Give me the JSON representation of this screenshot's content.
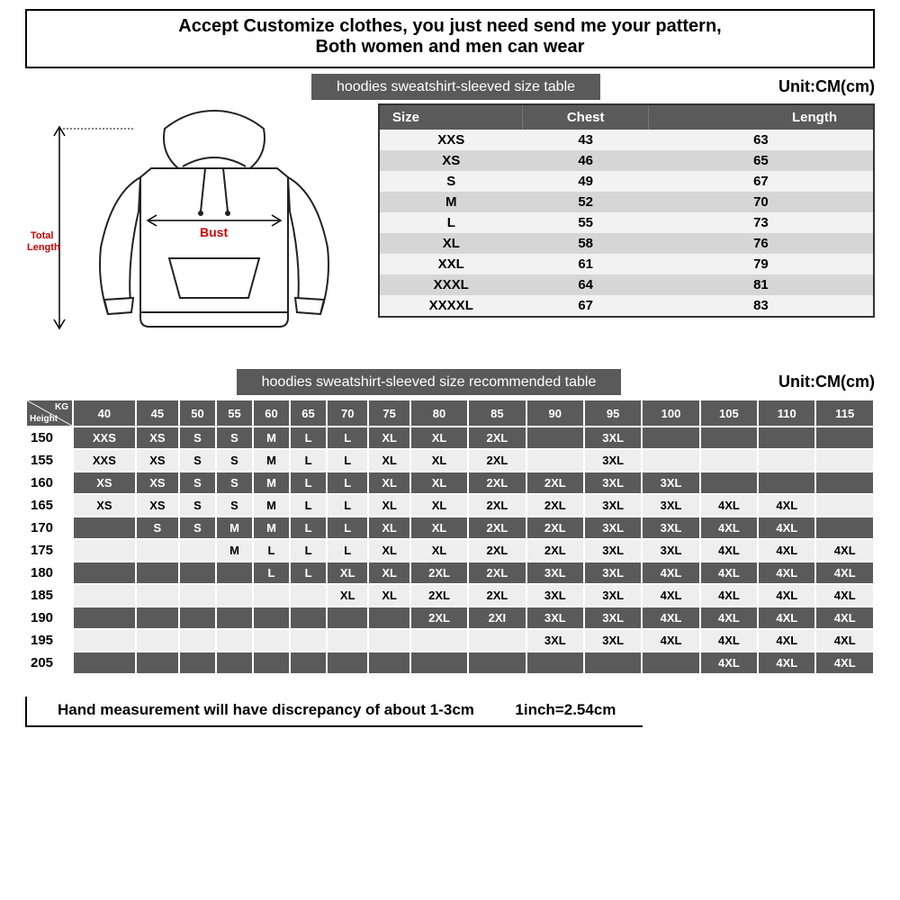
{
  "header": {
    "line1": "Accept Customize clothes, you just need send me your pattern,",
    "line2": "Both women and men can wear"
  },
  "section1": {
    "title": "hoodies sweatshirt-sleeved size  table",
    "unit": "Unit:CM(cm)",
    "title_bg": "#5a5a5a",
    "title_fg": "#ffffff"
  },
  "diagram": {
    "total_length_label": "Total\nLength",
    "bust_label": "Bust",
    "total_length_color": "#cc0000",
    "bust_color": "#cc0000",
    "stroke": "#222222"
  },
  "size_table": {
    "columns": [
      "Size",
      "Chest",
      "Length"
    ],
    "rows": [
      [
        "XXS",
        "43",
        "63"
      ],
      [
        "XS",
        "46",
        "65"
      ],
      [
        "S",
        "49",
        "67"
      ],
      [
        "M",
        "52",
        "70"
      ],
      [
        "L",
        "55",
        "73"
      ],
      [
        "XL",
        "58",
        "76"
      ],
      [
        "XXL",
        "61",
        "79"
      ],
      [
        "XXXL",
        "64",
        "81"
      ],
      [
        "XXXXL",
        "67",
        "83"
      ]
    ],
    "header_bg": "#5a5a5a",
    "header_fg": "#ffffff",
    "row_odd_bg": "#f2f2f2",
    "row_even_bg": "#d6d6d6"
  },
  "section2": {
    "title": "hoodies sweatshirt-sleeved size recommended table",
    "unit": "Unit:CM(cm)"
  },
  "rec_table": {
    "corner_top": "KG",
    "corner_bottom": "Height",
    "weights": [
      "40",
      "45",
      "50",
      "55",
      "60",
      "65",
      "70",
      "75",
      "80",
      "85",
      "90",
      "95",
      "100",
      "105",
      "110",
      "115"
    ],
    "heights": [
      "150",
      "155",
      "160",
      "165",
      "170",
      "175",
      "180",
      "185",
      "190",
      "195",
      "205"
    ],
    "grid": [
      [
        "XXS",
        "XS",
        "S",
        "S",
        "M",
        "L",
        "L",
        "XL",
        "XL",
        "2XL",
        "",
        "3XL",
        "",
        "",
        "",
        ""
      ],
      [
        "XXS",
        "XS",
        "S",
        "S",
        "M",
        "L",
        "L",
        "XL",
        "XL",
        "2XL",
        "",
        "3XL",
        "",
        "",
        "",
        ""
      ],
      [
        "XS",
        "XS",
        "S",
        "S",
        "M",
        "L",
        "L",
        "XL",
        "XL",
        "2XL",
        "2XL",
        "3XL",
        "3XL",
        "",
        "",
        ""
      ],
      [
        "XS",
        "XS",
        "S",
        "S",
        "M",
        "L",
        "L",
        "XL",
        "XL",
        "2XL",
        "2XL",
        "3XL",
        "3XL",
        "4XL",
        "4XL",
        ""
      ],
      [
        "",
        "S",
        "S",
        "M",
        "M",
        "L",
        "L",
        "XL",
        "XL",
        "2XL",
        "2XL",
        "3XL",
        "3XL",
        "4XL",
        "4XL",
        ""
      ],
      [
        "",
        "",
        "",
        "M",
        "L",
        "L",
        "L",
        "XL",
        "XL",
        "2XL",
        "2XL",
        "3XL",
        "3XL",
        "4XL",
        "4XL",
        "4XL"
      ],
      [
        "",
        "",
        "",
        "",
        "L",
        "L",
        "XL",
        "XL",
        "2XL",
        "2XL",
        "3XL",
        "3XL",
        "4XL",
        "4XL",
        "4XL",
        "4XL"
      ],
      [
        "",
        "",
        "",
        "",
        "",
        "",
        "XL",
        "XL",
        "2XL",
        "2XL",
        "3XL",
        "3XL",
        "4XL",
        "4XL",
        "4XL",
        "4XL"
      ],
      [
        "",
        "",
        "",
        "",
        "",
        "",
        "",
        "",
        "2XL",
        "2XI",
        "3XL",
        "3XL",
        "4XL",
        "4XL",
        "4XL",
        "4XL"
      ],
      [
        "",
        "",
        "",
        "",
        "",
        "",
        "",
        "",
        "",
        "",
        "3XL",
        "3XL",
        "4XL",
        "4XL",
        "4XL",
        "4XL"
      ],
      [
        "",
        "",
        "",
        "",
        "",
        "",
        "",
        "",
        "",
        "",
        "",
        "",
        "",
        "4XL",
        "4XL",
        "4XL"
      ]
    ],
    "header_bg": "#5a5a5a",
    "header_fg": "#ffffff",
    "row_odd_bg": "#5a5a5a",
    "row_odd_fg": "#ffffff",
    "row_even_bg": "#eeeeee",
    "row_even_fg": "#000000"
  },
  "footnote": {
    "text1": "Hand measurement will have discrepancy of about  1-3cm",
    "text2": "1inch=2.54cm"
  }
}
